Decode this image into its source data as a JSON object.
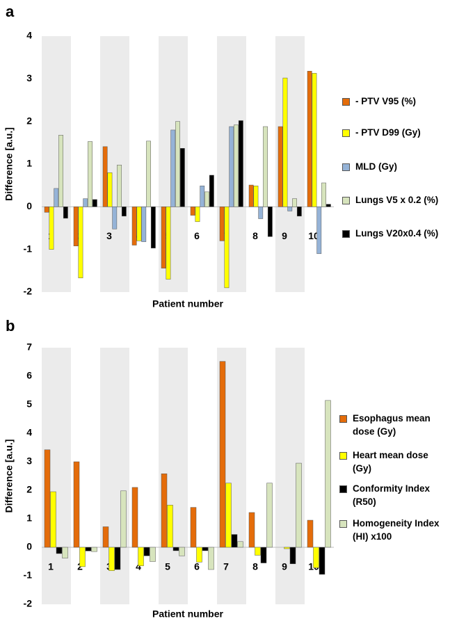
{
  "chart_data": [
    {
      "type": "bar",
      "panel": "a",
      "y_label": "Difference [a.u.]",
      "x_label": "Patient number",
      "categories": [
        "1",
        "2",
        "3",
        "4",
        "5",
        "6",
        "7",
        "8",
        "9",
        "10"
      ],
      "ylim": [
        -2,
        4
      ],
      "yticks": [
        -2,
        -1,
        0,
        1,
        2,
        3,
        4
      ],
      "series": [
        {
          "name": "- PTV V95 (%)",
          "color": "#e46c0a",
          "values": [
            -0.13,
            -0.92,
            1.41,
            -0.9,
            -1.44,
            -0.2,
            -0.8,
            0.51,
            1.88,
            3.18
          ]
        },
        {
          "name": "- PTV D99 (Gy)",
          "color": "#ffff00",
          "values": [
            -1.0,
            -1.67,
            0.8,
            -0.8,
            -1.7,
            -0.35,
            -1.9,
            0.49,
            3.02,
            3.13
          ]
        },
        {
          "name": "MLD (Gy)",
          "color": "#95b3d7",
          "values": [
            0.43,
            0.19,
            -0.52,
            -0.82,
            1.8,
            0.49,
            1.88,
            -0.28,
            -0.1,
            -1.1
          ]
        },
        {
          "name": "Lungs V5 x 0.2 (%)",
          "color": "#d7e4bd",
          "values": [
            1.68,
            1.53,
            0.98,
            1.54,
            2.0,
            0.35,
            1.92,
            1.88,
            0.19,
            0.56
          ]
        },
        {
          "name": "Lungs V20x0.4 (%)",
          "color": "#000000",
          "values": [
            -0.27,
            0.17,
            -0.22,
            -0.97,
            1.37,
            0.74,
            2.02,
            -0.7,
            -0.22,
            0.06
          ]
        }
      ]
    },
    {
      "type": "bar",
      "panel": "b",
      "y_label": "Difference [a.u.]",
      "x_label": "Patient number",
      "categories": [
        "1",
        "2",
        "3",
        "4",
        "5",
        "6",
        "7",
        "8",
        "9",
        "10"
      ],
      "ylim": [
        -2,
        7
      ],
      "yticks": [
        -2,
        -1,
        0,
        1,
        2,
        3,
        4,
        5,
        6,
        7
      ],
      "series": [
        {
          "name": "Esophagus mean dose (Gy)",
          "color": "#e46c0a",
          "values": [
            3.42,
            3.0,
            0.72,
            2.1,
            2.58,
            1.4,
            6.52,
            1.22,
            0,
            0.95
          ]
        },
        {
          "name": "Heart mean dose (Gy)",
          "color": "#ffff00",
          "values": [
            1.95,
            -0.68,
            -0.82,
            -0.65,
            1.48,
            -0.52,
            2.25,
            -0.28,
            -0.05,
            -0.72
          ]
        },
        {
          "name": "Conformity Index (R50)",
          "color": "#000000",
          "values": [
            -0.22,
            -0.13,
            -0.78,
            -0.3,
            -0.12,
            -0.12,
            0.45,
            -0.55,
            -0.58,
            -0.95
          ]
        },
        {
          "name": "Homogeneity Index (HI) x100",
          "color": "#d7e4bd",
          "values": [
            -0.38,
            -0.15,
            1.98,
            -0.5,
            -0.3,
            -0.78,
            0.2,
            2.25,
            2.95,
            5.15
          ]
        }
      ]
    }
  ]
}
